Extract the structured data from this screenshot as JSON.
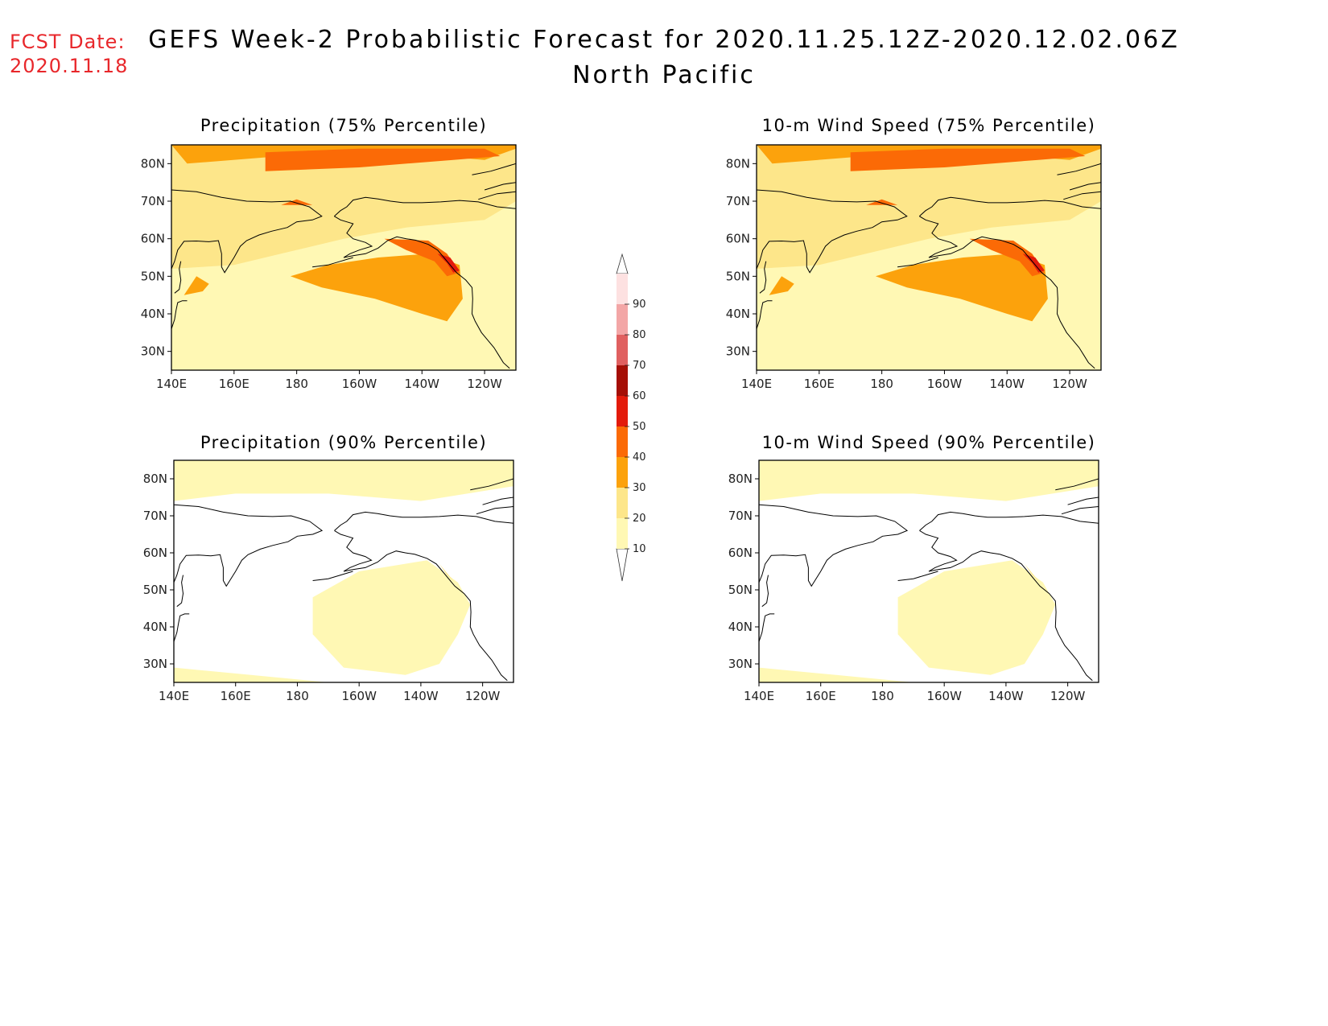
{
  "forecast_date": {
    "label": "FCST Date:",
    "value": "2020.11.18"
  },
  "title": {
    "main": "GEFS Week-2 Probabilistic Forecast for 2020.11.25.12Z-2020.12.02.06Z",
    "region": "North Pacific"
  },
  "panels": [
    {
      "id": "precip75",
      "title": "Precipitation (75% Percentile)",
      "level": "high"
    },
    {
      "id": "wind75",
      "title": "10-m Wind Speed (75% Percentile)",
      "level": "high"
    },
    {
      "id": "precip90",
      "title": "Precipitation (90% Percentile)",
      "level": "low"
    },
    {
      "id": "wind90",
      "title": "10-m Wind Speed (90% Percentile)",
      "level": "low"
    }
  ],
  "axes": {
    "lon_labels": [
      "140E",
      "160E",
      "180",
      "160W",
      "140W",
      "120W"
    ],
    "lat_labels": [
      "80N",
      "70N",
      "60N",
      "50N",
      "40N",
      "30N"
    ],
    "lon_range_deg_east": [
      140,
      250
    ],
    "lat_range": [
      25,
      85
    ]
  },
  "colorbar": {
    "labels": [
      "10",
      "20",
      "30",
      "40",
      "50",
      "60",
      "70",
      "80",
      "90"
    ],
    "colors": [
      "#fff8b4",
      "#fde68a",
      "#fca20c",
      "#fb6a06",
      "#e31b0b",
      "#a50f06",
      "#e06060",
      "#f3a6a6",
      "#fde1e1"
    ]
  }
}
